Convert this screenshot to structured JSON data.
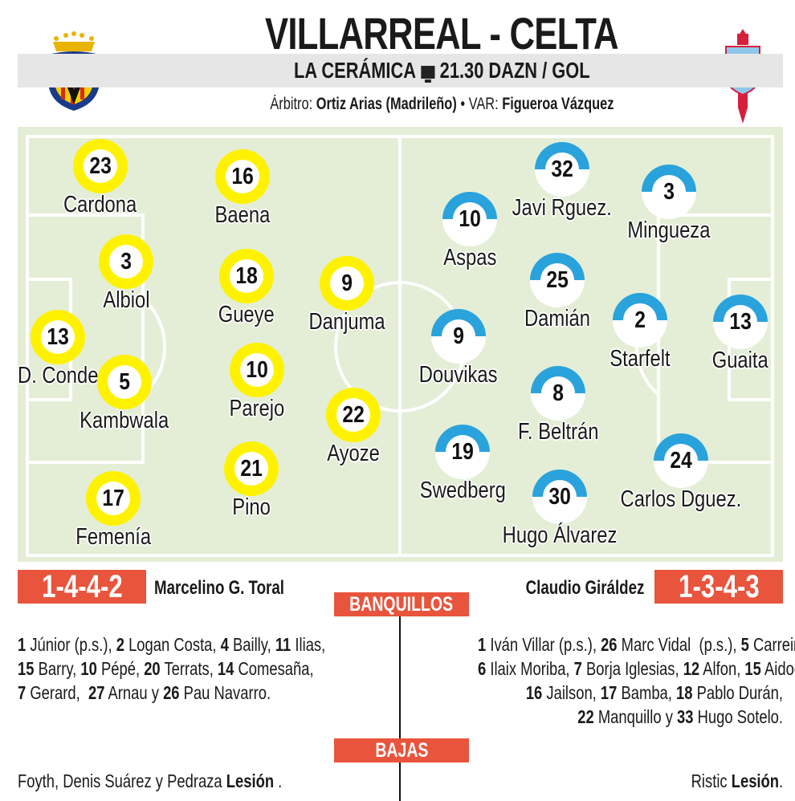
{
  "header": {
    "title": "VILLARREAL - CELTA",
    "venue": "LA CERÁMICA",
    "tv_icon": "television-icon",
    "broadcast": "21.30 DAZN / GOL",
    "referee_label": "Árbitro:",
    "referee": "Ortiz Arias (Madrileño)",
    "separator": "•",
    "var_label": "VAR:",
    "var": "Figueroa Vázquez"
  },
  "teams": {
    "home": {
      "crest_text": "CVF",
      "color": "#fff200",
      "formation": "1-4-4-2",
      "coach": "Marcelino G. Toral",
      "players": [
        {
          "num": "23",
          "name": "Cardona"
        },
        {
          "num": "16",
          "name": "Baena"
        },
        {
          "num": "3",
          "name": "Albiol"
        },
        {
          "num": "18",
          "name": "Gueye"
        },
        {
          "num": "9",
          "name": "Danjuma"
        },
        {
          "num": "13",
          "name": "D. Conde"
        },
        {
          "num": "5",
          "name": "Kambwala"
        },
        {
          "num": "10",
          "name": "Parejo"
        },
        {
          "num": "22",
          "name": "Ayoze"
        },
        {
          "num": "21",
          "name": "Pino"
        },
        {
          "num": "17",
          "name": "Femenía"
        }
      ]
    },
    "away": {
      "color": "#2aa3dc",
      "formation": "1-3-4-3",
      "coach": "Claudio Giráldez",
      "players": [
        {
          "num": "32",
          "name": "Javi Rguez."
        },
        {
          "num": "3",
          "name": "Mingueza"
        },
        {
          "num": "10",
          "name": "Aspas"
        },
        {
          "num": "25",
          "name": "Damián"
        },
        {
          "num": "9",
          "name": "Douvikas"
        },
        {
          "num": "2",
          "name": "Starfelt"
        },
        {
          "num": "13",
          "name": "Guaita"
        },
        {
          "num": "8",
          "name": "F. Beltrán"
        },
        {
          "num": "19",
          "name": "Swedberg"
        },
        {
          "num": "24",
          "name": "Carlos Dguez."
        },
        {
          "num": "30",
          "name": "Hugo Álvarez"
        }
      ]
    }
  },
  "accent_color": "#e8543c",
  "sections": {
    "bench": "BANQUILLOS",
    "absences": "BAJAS"
  },
  "bench": {
    "home": [
      [
        {
          "b": "1"
        },
        {
          "t": " Júnior (p.s.), "
        },
        {
          "b": "2"
        },
        {
          "t": " Logan Costa, "
        },
        {
          "b": "4"
        },
        {
          "t": " Bailly, "
        },
        {
          "b": "11"
        },
        {
          "t": " Ilias,"
        }
      ],
      [
        {
          "b": "15"
        },
        {
          "t": " Barry, "
        },
        {
          "b": "10"
        },
        {
          "t": " Pépé, "
        },
        {
          "b": "20"
        },
        {
          "t": " Terrats, "
        },
        {
          "b": "14"
        },
        {
          "t": " Comesaña,"
        }
      ],
      [
        {
          "b": "7"
        },
        {
          "t": " Gerard,  "
        },
        {
          "b": "27"
        },
        {
          "t": " Arnau y "
        },
        {
          "b": "26"
        },
        {
          "t": " Pau Navarro."
        }
      ]
    ],
    "away": [
      [
        {
          "b": "1"
        },
        {
          "t": " Iván Villar (p.s.), "
        },
        {
          "b": "26"
        },
        {
          "t": " Marc Vidal  (p.s.), "
        },
        {
          "b": "5"
        },
        {
          "t": " Carreira,"
        }
      ],
      [
        {
          "b": "6"
        },
        {
          "t": " Ilaix Moriba, "
        },
        {
          "b": "7"
        },
        {
          "t": " Borja Iglesias, "
        },
        {
          "b": "12"
        },
        {
          "t": " Alfon, "
        },
        {
          "b": "15"
        },
        {
          "t": " Aidoo,"
        }
      ],
      [
        {
          "b": "16"
        },
        {
          "t": " Jailson, "
        },
        {
          "b": "17"
        },
        {
          "t": " Bamba, "
        },
        {
          "b": "18"
        },
        {
          "t": " Pablo Durán,"
        }
      ],
      [
        {
          "b": "22"
        },
        {
          "t": " Manquillo y "
        },
        {
          "b": "33"
        },
        {
          "t": " Hugo Sotelo."
        }
      ]
    ]
  },
  "absences": {
    "home": {
      "players": "Foyth, Denis Suárez y Pedraza ",
      "reason": "Lesión",
      "end": " ."
    },
    "away": {
      "players": "Ristic ",
      "reason": "Lesión",
      "end": "."
    }
  }
}
